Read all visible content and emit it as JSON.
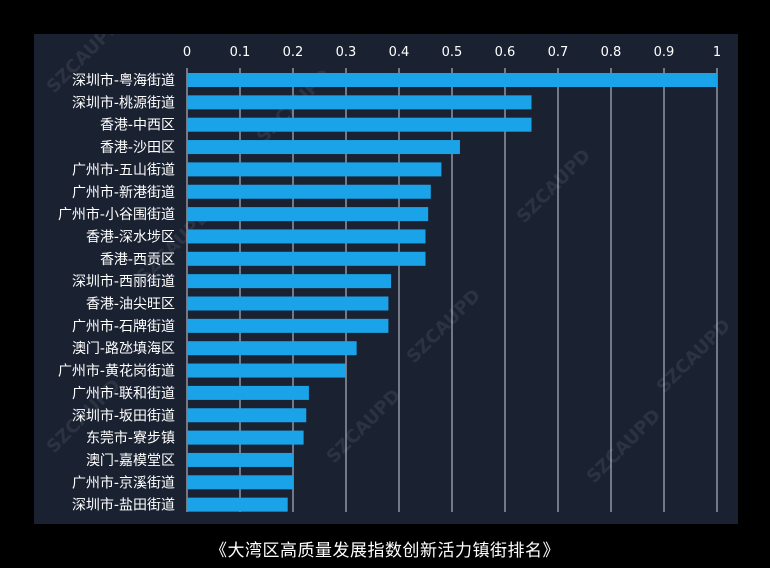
{
  "chart_data": {
    "type": "bar",
    "orientation": "horizontal",
    "title": "",
    "xlabel": "",
    "ylabel": "",
    "xlim": [
      0,
      1
    ],
    "ticks": [
      "0",
      "0.1",
      "0.2",
      "0.3",
      "0.4",
      "0.5",
      "0.6",
      "0.7",
      "0.8",
      "0.9",
      "1"
    ],
    "tick_values": [
      0,
      0.1,
      0.2,
      0.3,
      0.4,
      0.5,
      0.6,
      0.7,
      0.8,
      0.9,
      1
    ],
    "grid": true,
    "categories": [
      "深圳市-粤海街道",
      "深圳市-桃源街道",
      "香港-中西区",
      "香港-沙田区",
      "广州市-五山街道",
      "广州市-新港街道",
      "广州市-小谷围街道",
      "香港-深水埗区",
      "香港-西贡区",
      "深圳市-西丽街道",
      "香港-油尖旺区",
      "广州市-石牌街道",
      "澳门-路氹填海区",
      "广州市-黄花岗街道",
      "广州市-联和街道",
      "深圳市-坂田街道",
      "东莞市-寮步镇",
      "澳门-嘉模堂区",
      "广州市-京溪街道",
      "深圳市-盐田街道"
    ],
    "values": [
      1.0,
      0.65,
      0.65,
      0.515,
      0.48,
      0.46,
      0.455,
      0.45,
      0.45,
      0.385,
      0.38,
      0.38,
      0.32,
      0.3,
      0.23,
      0.225,
      0.22,
      0.2,
      0.2,
      0.19
    ],
    "colors": {
      "bar": "#1aa3e8",
      "grid": "#c9cfd8",
      "panel": "#1a2232",
      "text": "#ffffff"
    }
  },
  "caption": "《大湾区高质量发展指数创新活力镇街排名》",
  "watermark": "SZCAUPD"
}
